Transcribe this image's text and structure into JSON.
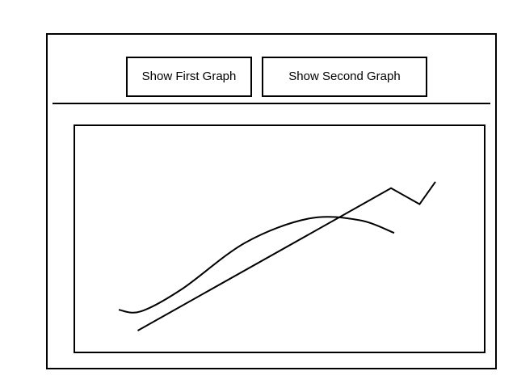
{
  "toolbar": {
    "first_button_label": "Show First Graph",
    "second_button_label": "Show Second Graph"
  },
  "chart_data": {
    "type": "line",
    "grid": false,
    "legend": "none",
    "series": [
      {
        "style": "smooth-curve",
        "color": "#000000",
        "points": [
          [
            0.0,
            0.13
          ],
          [
            0.07,
            0.12
          ],
          [
            0.2,
            0.26
          ],
          [
            0.4,
            0.55
          ],
          [
            0.6,
            0.7
          ],
          [
            0.76,
            0.69
          ],
          [
            0.87,
            0.61
          ]
        ]
      },
      {
        "style": "polyline",
        "color": "#000000",
        "points": [
          [
            0.06,
            0.0
          ],
          [
            0.86,
            0.89
          ],
          [
            0.95,
            0.79
          ],
          [
            1.0,
            0.93
          ]
        ]
      }
    ]
  },
  "colors": {
    "stroke": "#000000",
    "background": "#ffffff"
  }
}
